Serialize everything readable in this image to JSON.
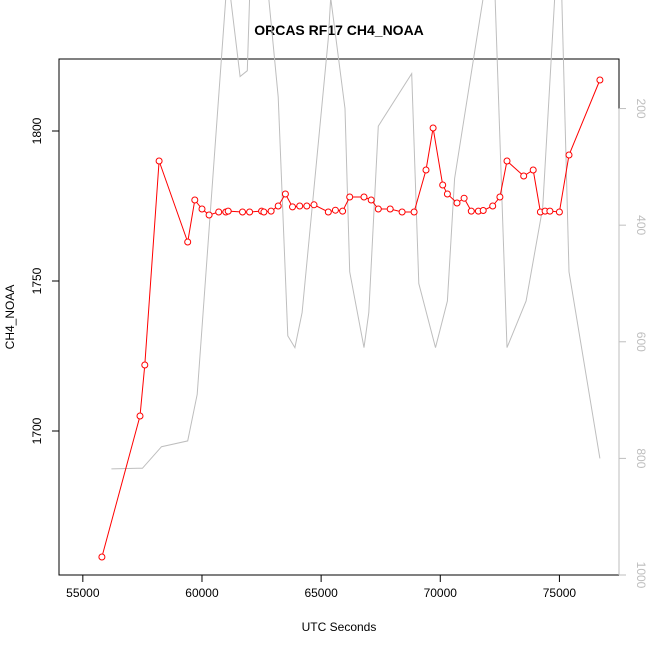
{
  "chart_data": {
    "type": "line",
    "title": "ORCAS RF17 CH4_NOAA",
    "xlabel": "UTC Seconds",
    "ylabel": "CH4_NOAA",
    "xlim": [
      54000,
      77500
    ],
    "ylim": [
      1652,
      1824
    ],
    "x_ticks": [
      55000,
      60000,
      65000,
      70000,
      75000
    ],
    "y_ticks": [
      1700,
      1750,
      1800
    ],
    "right_axis": {
      "lim": [
        1000,
        115
      ],
      "ticks": [
        200,
        400,
        600,
        800,
        1000
      ],
      "color": "#bebebe"
    },
    "series": [
      {
        "type": "line-points",
        "color": "#ff0000",
        "axis": "left",
        "x": [
          55800,
          57400,
          57600,
          58200,
          59400,
          59700,
          60000,
          60300,
          60700,
          61000,
          61100,
          61700,
          62000,
          62500,
          62600,
          62900,
          63200,
          63500,
          63800,
          64100,
          64400,
          64700,
          65300,
          65600,
          65900,
          66200,
          66800,
          67100,
          67400,
          67900,
          68400,
          68900,
          69400,
          69700,
          70100,
          70300,
          70700,
          71000,
          71300,
          71600,
          71800,
          72200,
          72500,
          72800,
          73500,
          73900,
          74200,
          74400,
          74600,
          75000,
          75400,
          76700
        ],
        "y": [
          1658,
          1705,
          1722,
          1790,
          1763,
          1777,
          1774,
          1772,
          1773,
          1773,
          1773.3,
          1773,
          1773,
          1773.3,
          1773,
          1773.3,
          1775,
          1779,
          1774.7,
          1775,
          1775,
          1775.4,
          1773,
          1773.6,
          1773.3,
          1778,
          1778,
          1777,
          1774,
          1774,
          1773,
          1773,
          1787,
          1801,
          1782,
          1779,
          1776,
          1777.6,
          1773.3,
          1773.3,
          1773.5,
          1775,
          1778,
          1790,
          1785,
          1787,
          1773,
          1773.3,
          1773.3,
          1773,
          1792,
          1817
        ]
      },
      {
        "type": "line",
        "color": "#bebebe",
        "axis": "right",
        "x": [
          56200,
          57300,
          57500,
          58300,
          59400,
          59800,
          61000,
          61200,
          61600,
          61900,
          62000,
          62800,
          63200,
          63600,
          63900,
          64200,
          65300,
          65400,
          66000,
          66200,
          66800,
          67000,
          67400,
          68800,
          69100,
          69800,
          70300,
          70600,
          71800,
          72300,
          72800,
          73600,
          74300,
          74800,
          75100,
          75400,
          76700
        ],
        "y": [
          818,
          817,
          817,
          780,
          770,
          690,
          10,
          10,
          145,
          135,
          10,
          10,
          180,
          590,
          610,
          550,
          80,
          10,
          200,
          480,
          610,
          550,
          230,
          140,
          500,
          610,
          530,
          320,
          10,
          10,
          610,
          530,
          370,
          10,
          10,
          480,
          800
        ]
      }
    ]
  }
}
